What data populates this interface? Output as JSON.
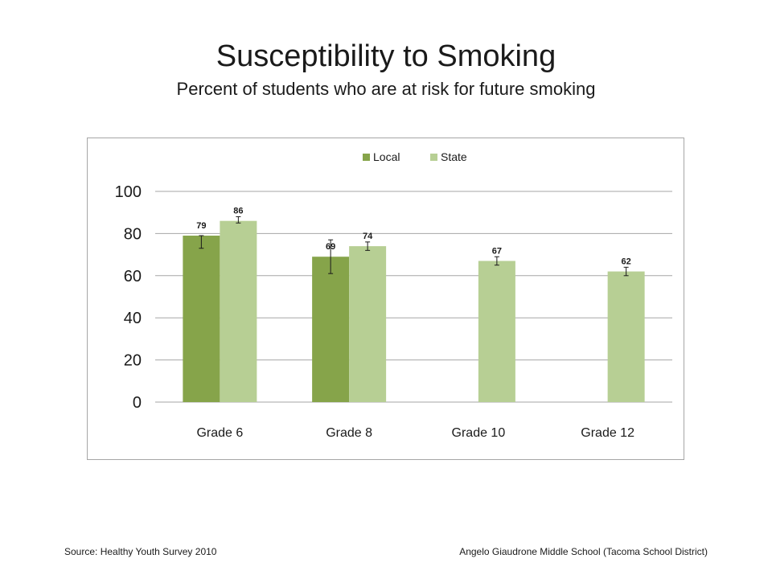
{
  "slide": {
    "title": "Susceptibility to Smoking",
    "subtitle": "Percent of students who are at risk for future smoking",
    "source": "Source: Healthy Youth Survey 2010",
    "school": "Angelo Giaudrone Middle School (Tacoma School District)"
  },
  "chart_data": {
    "type": "bar",
    "title": "",
    "xlabel": "",
    "ylabel": "",
    "categories": [
      "Grade 6",
      "Grade 8",
      "Grade 10",
      "Grade 12"
    ],
    "series": [
      {
        "name": "Local",
        "color": "#86a44a",
        "values": [
          79,
          69,
          null,
          null
        ],
        "error_low": [
          73,
          61,
          null,
          null
        ],
        "error_high": [
          79,
          77,
          null,
          null
        ]
      },
      {
        "name": "State",
        "color": "#b7cf94",
        "values": [
          86,
          74,
          67,
          62
        ],
        "error_low": [
          85,
          72,
          65,
          60
        ],
        "error_high": [
          88,
          76,
          69,
          64
        ]
      }
    ],
    "data_labels": true,
    "ylim": [
      0,
      100
    ],
    "yticks": [
      0,
      20,
      40,
      60,
      80,
      100
    ],
    "grid": true,
    "legend": "top-center",
    "error_bars": true
  }
}
